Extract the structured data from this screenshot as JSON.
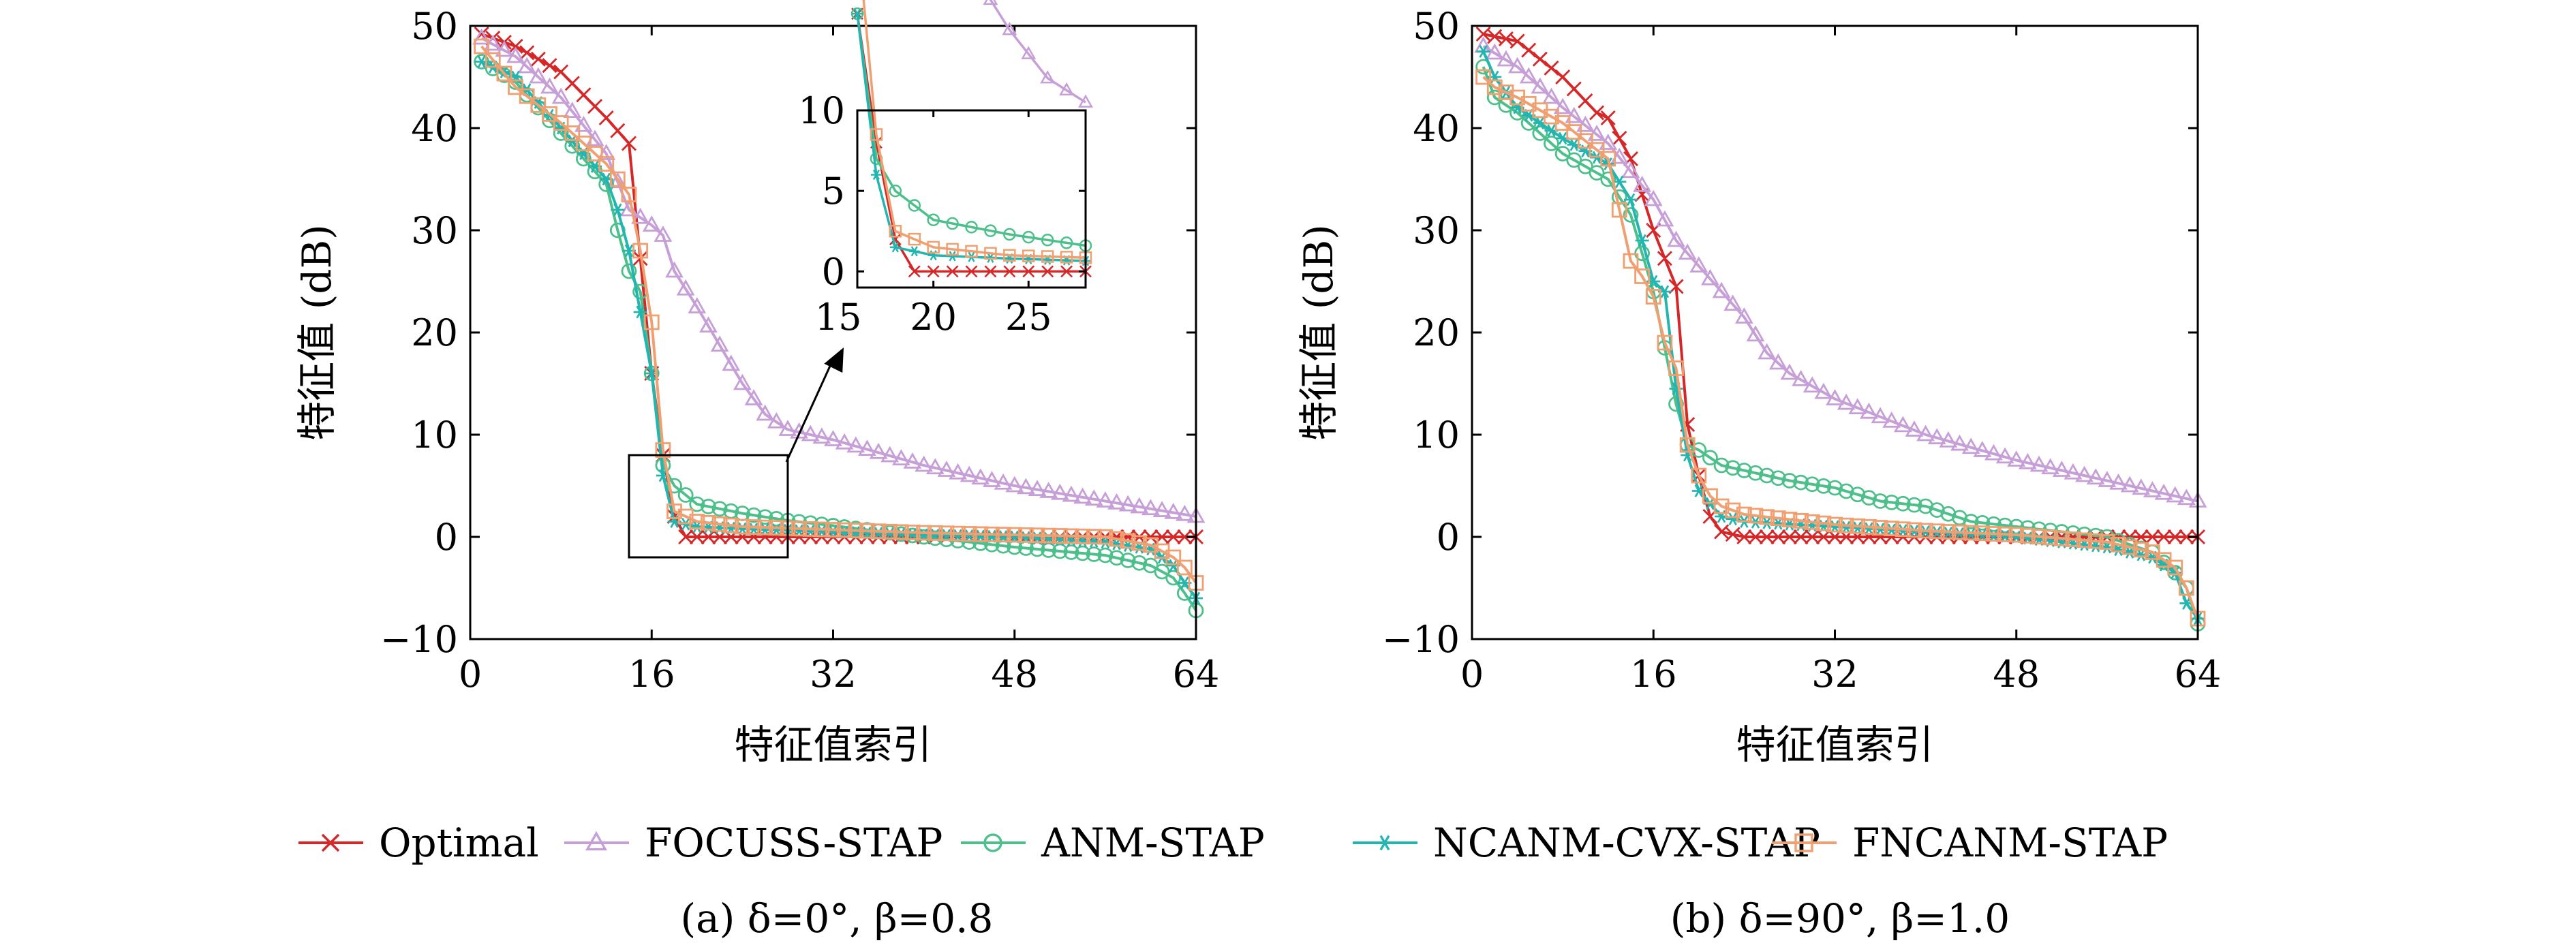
{
  "legend": [
    {
      "name": "Optimal",
      "color": "#d62728",
      "marker": "x"
    },
    {
      "name": "FOCUSS-STAP",
      "color": "#c79fd8",
      "marker": "triangle"
    },
    {
      "name": "ANM-STAP",
      "color": "#4cbf8b",
      "marker": "circle"
    },
    {
      "name": "NCANM-CVX-STAP",
      "color": "#23b5b0",
      "marker": "star"
    },
    {
      "name": "FNCANM-STAP",
      "color": "#f0a070",
      "marker": "square"
    }
  ],
  "captions": {
    "a": "(a) δ=0°, β=0.8",
    "b": "(b) δ=90°, β=1.0"
  },
  "chart_data": [
    {
      "type": "line",
      "xlabel": "特征值索引",
      "ylabel": "特征值 (dB)",
      "xlim": [
        0,
        64
      ],
      "ylim": [
        -10,
        50
      ],
      "xticks": [
        0,
        16,
        32,
        48,
        64
      ],
      "yticks": [
        -10,
        0,
        10,
        20,
        30,
        40,
        50
      ],
      "grid": false,
      "series": [
        {
          "name": "Optimal",
          "x": [
            1,
            4,
            8,
            12,
            14,
            16,
            17,
            18,
            19,
            24,
            32,
            48,
            56,
            64
          ],
          "values": [
            49.2,
            48,
            45.5,
            41,
            38.5,
            16,
            8,
            2,
            0,
            0,
            0,
            0,
            0,
            0
          ]
        },
        {
          "name": "FOCUSS-STAP",
          "x": [
            1,
            4,
            8,
            12,
            14,
            16,
            17,
            18,
            20,
            24,
            26,
            28,
            32,
            40,
            48,
            56,
            64
          ],
          "values": [
            48.8,
            47,
            43,
            37.5,
            32,
            30.5,
            29.5,
            26,
            22.5,
            15,
            12,
            10.5,
            9.5,
            7,
            5,
            3.5,
            2
          ]
        },
        {
          "name": "ANM-STAP",
          "x": [
            1,
            4,
            8,
            12,
            13,
            14,
            15,
            16,
            17,
            18,
            20,
            24,
            28,
            32,
            40,
            48,
            56,
            60,
            62,
            63,
            64
          ],
          "values": [
            46.5,
            44.5,
            39.5,
            34.5,
            30,
            26,
            24,
            16,
            7,
            5,
            3.2,
            2.3,
            1.6,
            1.1,
            0,
            -1,
            -1.8,
            -2.8,
            -4,
            -5.5,
            -7.2
          ]
        },
        {
          "name": "NCANM-CVX-STAP",
          "x": [
            1,
            4,
            8,
            12,
            13,
            14,
            15,
            16,
            17,
            18,
            20,
            24,
            32,
            40,
            48,
            56,
            60,
            62,
            63,
            64
          ],
          "values": [
            46.5,
            45,
            40,
            35,
            32,
            28,
            22,
            16,
            6,
            1.5,
            1,
            0.8,
            0.5,
            0.2,
            0,
            -0.5,
            -1.2,
            -2.8,
            -4.5,
            -6
          ]
        },
        {
          "name": "FNCANM-STAP",
          "x": [
            1,
            4,
            8,
            12,
            14,
            15,
            16,
            17,
            18,
            20,
            24,
            32,
            40,
            48,
            56,
            60,
            62,
            63,
            64
          ],
          "values": [
            48,
            44,
            40.5,
            36.5,
            33.5,
            28,
            21,
            8.5,
            2.5,
            1.5,
            1,
            0.7,
            0.4,
            0.2,
            0,
            -0.8,
            -2,
            -3,
            -4.5
          ]
        }
      ],
      "inset": {
        "xlim": [
          16,
          28
        ],
        "ylim": [
          -1,
          10
        ],
        "xticks": [
          15,
          20,
          25
        ],
        "yticks": [
          0,
          5,
          10
        ],
        "zoom_box": {
          "xlim": [
            14,
            28
          ],
          "ylim": [
            -2,
            8
          ]
        }
      }
    },
    {
      "type": "line",
      "xlabel": "特征值索引",
      "ylabel": "特征值 (dB)",
      "xlim": [
        0,
        64
      ],
      "ylim": [
        -10,
        50
      ],
      "xticks": [
        0,
        16,
        32,
        48,
        64
      ],
      "yticks": [
        -10,
        0,
        10,
        20,
        30,
        40,
        50
      ],
      "grid": false,
      "series": [
        {
          "name": "Optimal",
          "x": [
            1,
            4,
            8,
            11,
            12,
            14,
            16,
            18,
            19,
            20,
            21,
            22,
            24,
            32,
            48,
            56,
            64
          ],
          "values": [
            49.2,
            48.5,
            45,
            41.5,
            41,
            37,
            30,
            24.5,
            11,
            6,
            2,
            0.5,
            0,
            0,
            0,
            0,
            0
          ]
        },
        {
          "name": "FOCUSS-STAP",
          "x": [
            1,
            4,
            8,
            12,
            16,
            18,
            20,
            24,
            26,
            28,
            32,
            40,
            48,
            56,
            64
          ],
          "values": [
            48,
            46,
            42,
            38.5,
            33,
            29,
            26.5,
            21.5,
            18,
            16,
            13.5,
            10,
            7.5,
            5.5,
            3.5
          ]
        },
        {
          "name": "ANM-STAP",
          "x": [
            1,
            2,
            4,
            8,
            12,
            14,
            16,
            18,
            19,
            20,
            22,
            24,
            28,
            32,
            36,
            40,
            44,
            48,
            56,
            60,
            62,
            63,
            64
          ],
          "values": [
            46,
            43,
            41.5,
            37.5,
            35,
            31.5,
            24,
            13,
            9,
            8.5,
            7,
            6.5,
            5.5,
            4.8,
            3.5,
            3,
            1.5,
            1,
            0,
            -1.5,
            -3.5,
            -5,
            -8.5
          ]
        },
        {
          "name": "NCANM-CVX-STAP",
          "x": [
            1,
            2,
            4,
            8,
            12,
            14,
            16,
            17,
            18,
            19,
            20,
            22,
            24,
            32,
            40,
            48,
            56,
            60,
            62,
            63,
            64
          ],
          "values": [
            47.5,
            45,
            42,
            39,
            36.5,
            33,
            25,
            24,
            14.5,
            8,
            4.5,
            2,
            1.5,
            1,
            0.5,
            0,
            -1,
            -2,
            -3.5,
            -6.5,
            -8
          ]
        },
        {
          "name": "FNCANM-STAP",
          "x": [
            1,
            2,
            4,
            8,
            12,
            14,
            15,
            16,
            17,
            18,
            19,
            20,
            21,
            22,
            24,
            32,
            40,
            48,
            56,
            60,
            62,
            63,
            64
          ],
          "values": [
            45,
            44,
            43,
            40.5,
            37,
            27,
            25.5,
            23.5,
            19,
            16.5,
            9,
            6,
            4,
            3,
            2.2,
            1.2,
            0.6,
            0.2,
            -0.5,
            -1.5,
            -3,
            -5,
            -8
          ]
        }
      ]
    }
  ]
}
